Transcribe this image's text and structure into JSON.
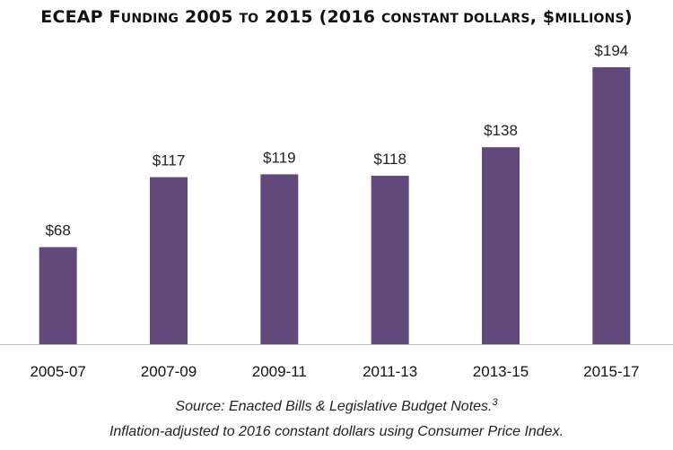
{
  "chart_data": {
    "type": "bar",
    "title": "ECEAP Funding 2005 to 2015 (2016 constant dollars, $millions)",
    "categories": [
      "2005-07",
      "2007-09",
      "2009-11",
      "2011-13",
      "2013-15",
      "2015-17"
    ],
    "values": [
      68,
      117,
      119,
      118,
      138,
      194
    ],
    "data_labels": [
      "$68",
      "$117",
      "$119",
      "$118",
      "$138",
      "$194"
    ],
    "xlabel": "",
    "ylabel": "",
    "ylim": [
      0,
      200
    ],
    "grid": false,
    "legend": "none",
    "bar_color": "#614a7b"
  },
  "notes": {
    "source": "Source: Enacted Bills & Legislative Budget Notes.",
    "source_footnote": "3",
    "inflation": "Inflation-adjusted to 2016 constant dollars using Consumer Price Index."
  }
}
